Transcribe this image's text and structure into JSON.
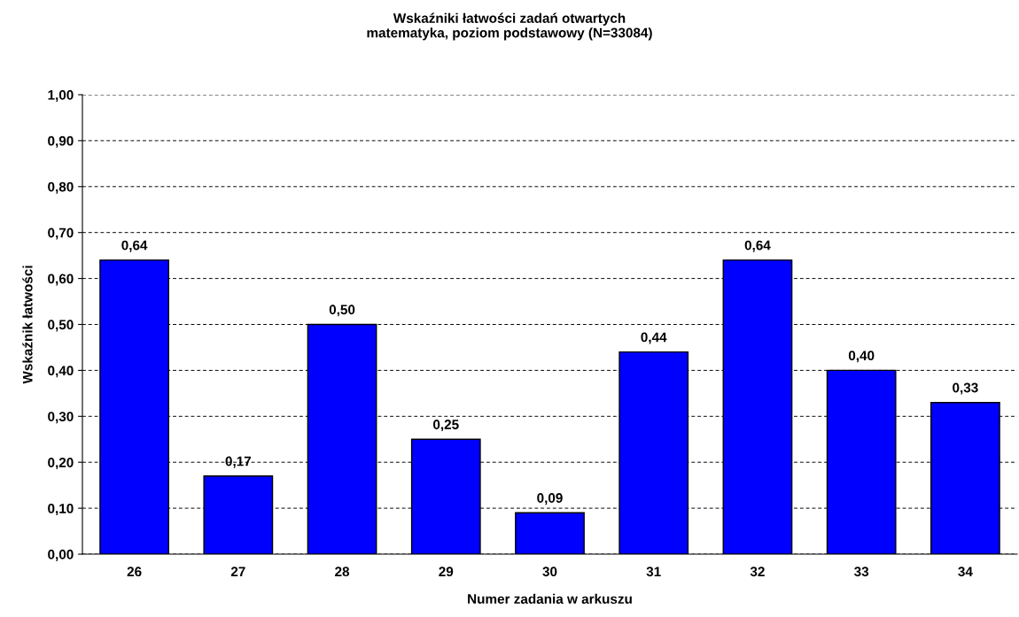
{
  "chart_data": {
    "type": "bar",
    "title": "Wskaźniki łatwości zadań otwartych\nmatematyka, poziom podstawowy (N=33084)",
    "xlabel": "Numer zadania w arkuszu",
    "ylabel": "Wskaźnik łatwości",
    "categories": [
      "26",
      "27",
      "28",
      "29",
      "30",
      "31",
      "32",
      "33",
      "34"
    ],
    "values": [
      0.64,
      0.17,
      0.5,
      0.25,
      0.09,
      0.44,
      0.64,
      0.4,
      0.33
    ],
    "value_labels": [
      "0,64",
      "0,17",
      "0,50",
      "0,25",
      "0,09",
      "0,44",
      "0,64",
      "0,40",
      "0,33"
    ],
    "color": "#0000ff",
    "ylim": [
      0,
      1
    ],
    "yticks": [
      {
        "value": 0,
        "label": "0,00"
      },
      {
        "value": 0.1,
        "label": "0,10"
      },
      {
        "value": 0.2,
        "label": "0,20"
      },
      {
        "value": 0.3,
        "label": "0,30"
      },
      {
        "value": 0.4,
        "label": "0,40"
      },
      {
        "value": 0.5,
        "label": "0,50"
      },
      {
        "value": 0.6,
        "label": "0,60"
      },
      {
        "value": 0.7,
        "label": "0,70"
      },
      {
        "value": 0.8,
        "label": "0,80"
      },
      {
        "value": 0.9,
        "label": "0,90"
      },
      {
        "value": 1,
        "label": "1,00"
      }
    ],
    "grid": "y",
    "line_style": "dashed"
  }
}
